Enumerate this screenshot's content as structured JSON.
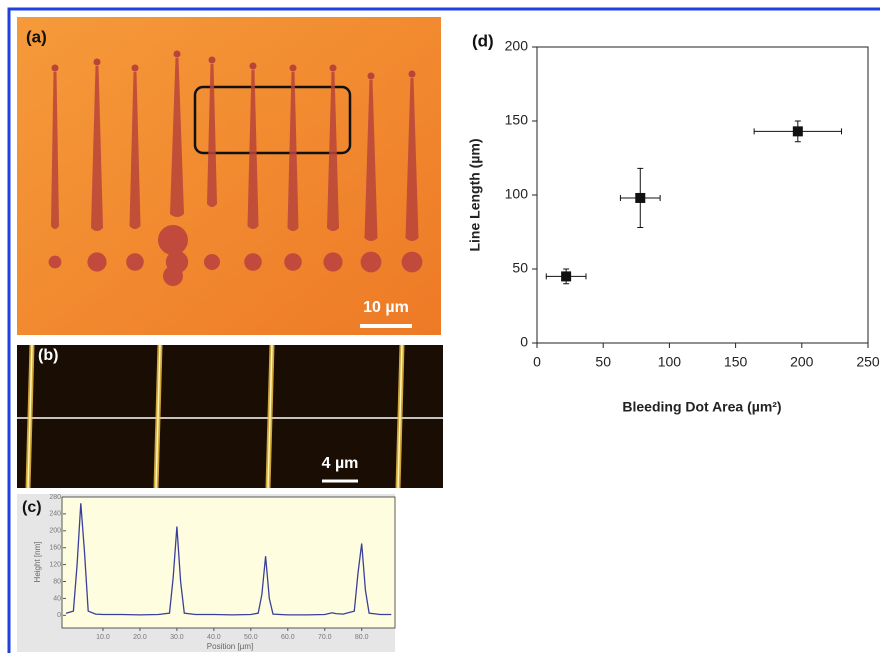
{
  "panels": {
    "a": {
      "label": "(a)",
      "scale_bar": "10 µm"
    },
    "b": {
      "label": "(b)",
      "scale_bar": "4 µm"
    }
  },
  "chart_data": [
    {
      "type": "line",
      "label": "(c)",
      "x_label": "Position [µm]",
      "y_label": "Height [nm]",
      "color": "#3a3f9a",
      "x": [
        0,
        2,
        3,
        4,
        5,
        6,
        8,
        10,
        15,
        20,
        25,
        28,
        29,
        30,
        31,
        32,
        35,
        40,
        45,
        50,
        52,
        53,
        54,
        55,
        56,
        60,
        65,
        70,
        72,
        73,
        75,
        78,
        79,
        80,
        81,
        82,
        85,
        88
      ],
      "values": [
        5,
        10,
        120,
        265,
        150,
        10,
        3,
        2,
        2,
        1,
        2,
        5,
        90,
        210,
        80,
        5,
        2,
        2,
        1,
        2,
        5,
        50,
        140,
        40,
        3,
        1,
        1,
        2,
        6,
        4,
        3,
        10,
        100,
        170,
        60,
        5,
        2,
        2
      ],
      "xlim": [
        0,
        89
      ],
      "ylim": [
        -30,
        280
      ],
      "xticks": [
        {
          "value": 10,
          "label": "10.0"
        },
        {
          "value": 20,
          "label": "20.0"
        },
        {
          "value": 30,
          "label": "30.0"
        },
        {
          "value": 40,
          "label": "40.0"
        },
        {
          "value": 50,
          "label": "50.0"
        },
        {
          "value": 60,
          "label": "60.0"
        },
        {
          "value": 70,
          "label": "70.0"
        },
        {
          "value": 80,
          "label": "80.0"
        }
      ],
      "yticks": [
        0,
        40,
        80,
        120,
        160,
        200,
        240,
        280
      ]
    },
    {
      "type": "scatter",
      "label": "(d)",
      "x_label": "Bleeding Dot Area (µm²)",
      "y_label": "Line Length (µm)",
      "color": "#111111",
      "x": [
        22,
        78,
        197
      ],
      "values": [
        45,
        98,
        143
      ],
      "x_err": [
        15,
        15,
        33
      ],
      "y_err": [
        5,
        20,
        7
      ],
      "xlim": [
        0,
        250
      ],
      "ylim": [
        0,
        200
      ],
      "xticks": [
        0,
        50,
        100,
        150,
        200,
        250
      ],
      "yticks": [
        0,
        50,
        100,
        150,
        200
      ]
    }
  ]
}
